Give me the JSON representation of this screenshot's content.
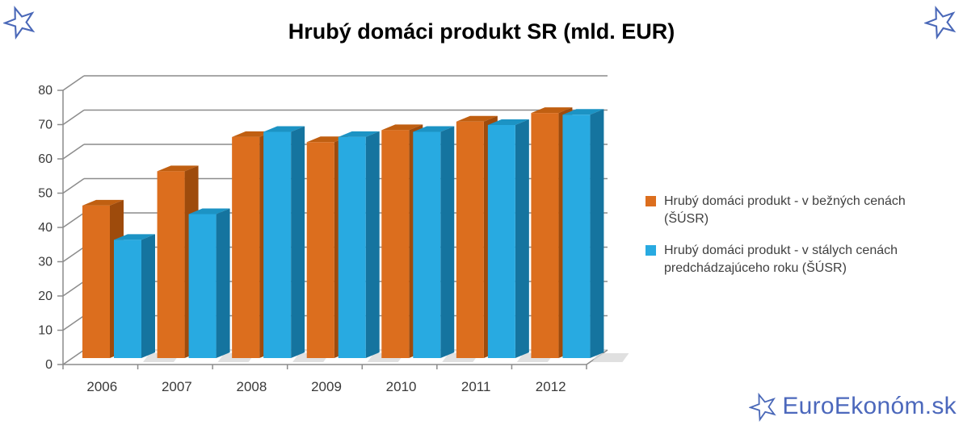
{
  "chart_data": {
    "type": "bar",
    "subtype": "3d-clustered-column",
    "title": "Hrubý domáci produkt SR (mld. EUR)",
    "categories": [
      "2006",
      "2007",
      "2008",
      "2009",
      "2010",
      "2011",
      "2012"
    ],
    "series": [
      {
        "name": "Hrubý domáci produkt - v bežných cenách (ŠÚSR)",
        "values": [
          44.5,
          54.5,
          64.5,
          63,
          66.5,
          69,
          71.5
        ],
        "color": {
          "front": "#DC6E1E",
          "top": "#C05F11",
          "side": "#9E4B0C"
        }
      },
      {
        "name": "Hrubý domáci produkt - v stálych cenách predchádzajúceho roku (ŠÚSR)",
        "values": [
          34.5,
          42,
          66,
          64.5,
          66,
          68,
          71
        ],
        "color": {
          "front": "#28AAE1",
          "top": "#1C93C4",
          "side": "#15749F"
        }
      }
    ],
    "xlabel": "",
    "ylabel": "",
    "ylim": [
      0,
      80
    ],
    "yticks": [
      0,
      10,
      20,
      30,
      40,
      50,
      60,
      70,
      80
    ],
    "grid": true,
    "legend_position": "right",
    "gridline_color": "#8C8C8C",
    "axis_text_color": "#3A3A3A"
  },
  "watermark": {
    "text": "EuroEkonóm.sk",
    "color": "#4C68BC"
  },
  "icons": {
    "corner_decoration": "star-outline-icon",
    "watermark_logo": "star-outline-icon"
  },
  "brand": {
    "star_color": "#4A68B8"
  }
}
